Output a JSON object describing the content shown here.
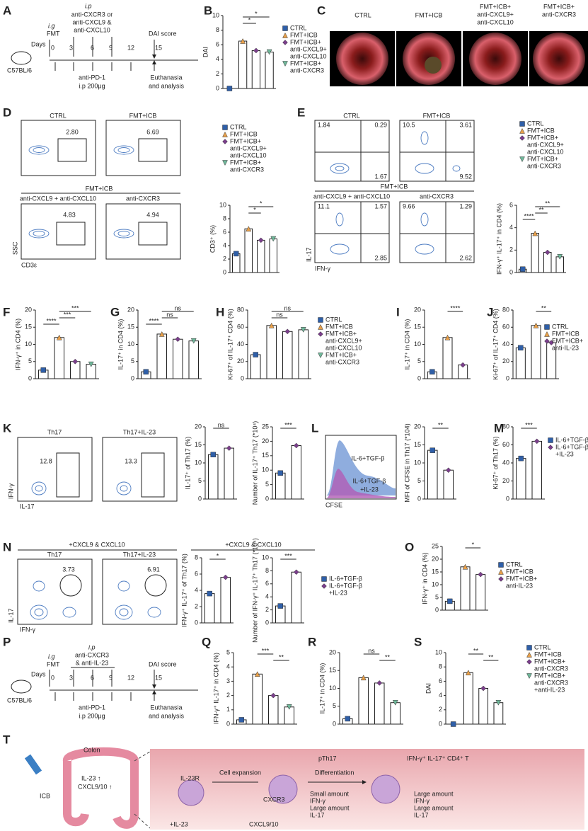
{
  "letters": [
    "A",
    "B",
    "C",
    "D",
    "E",
    "F",
    "G",
    "H",
    "I",
    "J",
    "K",
    "L",
    "M",
    "N",
    "O",
    "P",
    "Q",
    "R",
    "S",
    "T"
  ],
  "scheme_a": {
    "mouse": "C57BL/6",
    "days": "Days",
    "ig": "i.g",
    "fmt": "FMT",
    "ip": "i.p",
    "drug": [
      "anti-CXCR3 or",
      "anti-CXCL9 &",
      "anti-CXCL10"
    ],
    "score": "DAI score",
    "day_ticks": [
      0,
      3,
      6,
      9,
      12,
      15
    ],
    "pd1": "anti-PD-1",
    "dose": "i.p  200μg",
    "end": [
      "Euthanasia",
      "and analysis"
    ]
  },
  "scheme_p": {
    "mouse": "C57BL/6",
    "days": "Days",
    "ig": "i.g",
    "fmt": "FMT",
    "ip": "i.p",
    "drug": [
      "anti-CXCR3",
      "& anti-IL-23"
    ],
    "score": "DAI score",
    "day_ticks": [
      0,
      3,
      6,
      9,
      12,
      15
    ],
    "pd1": "anti-PD-1",
    "dose": "i.p  200μg",
    "end": [
      "Euthanasia",
      "and analysis"
    ]
  },
  "colonoscopy": {
    "labels": [
      [
        "CTRL"
      ],
      [
        "FMT+ICB"
      ],
      [
        "FMT+ICB+",
        "anti-CXCL9+",
        "anti-CXCL10"
      ],
      [
        "FMT+ICB+",
        "anti-CXCR3"
      ]
    ]
  },
  "flow_d": {
    "titles": [
      "CTRL",
      "FMT+ICB",
      "anti-CXCL9 + anti-CXCL10",
      "anti-CXCR3"
    ],
    "group": "FMT+ICB",
    "gates": [
      "2.80",
      "6.69",
      "4.83",
      "4.94"
    ],
    "ylabel": "SSC",
    "xlabel": "CD3ε"
  },
  "flow_e": {
    "titles": [
      "CTRL",
      "FMT+ICB",
      "anti-CXCL9 + anti-CXCL10",
      "anti-CXCR3"
    ],
    "group": "FMT+ICB",
    "quadrants": [
      [
        "1.84",
        "0.29",
        "1.67"
      ],
      [
        "10.5",
        "3.61",
        "9.52"
      ],
      [
        "11.1",
        "1.57",
        "2.85"
      ],
      [
        "9.66",
        "1.29",
        "2.62"
      ]
    ],
    "ylabel": "IL-17",
    "xlabel": "IFN-γ"
  },
  "flow_k": {
    "titles": [
      "Th17",
      "Th17+IL-23"
    ],
    "gates": [
      12.8,
      13.3
    ],
    "ylabel": "IFN-γ",
    "xlabel": "IL-17"
  },
  "histogram_l": {
    "labels": [
      "IL-6+TGF-β",
      "IL-6+TGF-β",
      "+IL-23"
    ],
    "xlabel": "CFSE"
  },
  "flow_n": {
    "header": "+CXCL9 & CXCL10",
    "titles": [
      "Th17",
      "Th17+IL-23"
    ],
    "gates": [
      3.73,
      6.91
    ],
    "ylabel": "IL-17",
    "xlabel": "IFN-γ"
  },
  "bar_header_n": "+CXCL9 & CXCL10",
  "legends": [
    {
      "items": [
        {
          "name": [
            "CTRL"
          ],
          "color": "#2f5fa8"
        },
        {
          "name": [
            "FMT+ICB"
          ],
          "color": "#e8a04a"
        },
        {
          "name": [
            "FMT+ICB+",
            "anti-CXCL9+",
            "anti-CXCL10"
          ],
          "color": "#7b3f8c"
        },
        {
          "name": [
            "FMT+ICB+",
            "anti-CXCR3"
          ],
          "color": "#6fb89a"
        }
      ]
    },
    {
      "items": [
        {
          "name": [
            "CTRL"
          ],
          "color": "#2f5fa8"
        },
        {
          "name": [
            "FMT+ICB"
          ],
          "color": "#e8a04a"
        },
        {
          "name": [
            "FMT+ICB+",
            "anti-CXCL9+",
            "anti-CXCL10"
          ],
          "color": "#7b3f8c"
        },
        {
          "name": [
            "FMT+ICB+",
            "anti-CXCR3"
          ],
          "color": "#6fb89a"
        }
      ]
    },
    {
      "items": [
        {
          "name": [
            "CTRL"
          ],
          "color": "#2f5fa8"
        },
        {
          "name": [
            "FMT+ICB"
          ],
          "color": "#e8a04a"
        },
        {
          "name": [
            "FMT+ICB+",
            "anti-CXCL9+",
            "anti-CXCL10"
          ],
          "color": "#7b3f8c"
        },
        {
          "name": [
            "FMT+ICB+",
            "anti-CXCR3"
          ],
          "color": "#6fb89a"
        }
      ]
    },
    {
      "items": [
        {
          "name": [
            "CTRL"
          ],
          "color": "#2f5fa8"
        },
        {
          "name": [
            "FMT+ICB"
          ],
          "color": "#e8a04a"
        },
        {
          "name": [
            "FMT+ICB+",
            "anti-CXCL9+",
            "anti-CXCL10"
          ],
          "color": "#7b3f8c"
        },
        {
          "name": [
            "FMT+ICB+",
            "anti-CXCR3"
          ],
          "color": "#6fb89a"
        }
      ]
    },
    {
      "items": [
        {
          "name": [
            "CTRL"
          ],
          "color": "#2f5fa8"
        },
        {
          "name": [
            "FMT+ICB"
          ],
          "color": "#e8a04a"
        },
        {
          "name": [
            "FMT+ICB+",
            "anti-IL-23"
          ],
          "color": "#7b3f8c"
        }
      ]
    },
    {
      "items": [
        {
          "name": [
            "IL-6+TGF-β"
          ],
          "color": "#2f5fa8"
        },
        {
          "name": [
            "IL-6+TGF-β",
            "+IL-23"
          ],
          "color": "#7b3f8c"
        }
      ]
    },
    {
      "items": [
        {
          "name": [
            "IL-6+TGF-β"
          ],
          "color": "#2f5fa8"
        },
        {
          "name": [
            "IL-6+TGF-β",
            "+IL-23"
          ],
          "color": "#7b3f8c"
        }
      ]
    },
    {
      "items": [
        {
          "name": [
            "CTRL"
          ],
          "color": "#2f5fa8"
        },
        {
          "name": [
            "FMT+ICB"
          ],
          "color": "#e8a04a"
        },
        {
          "name": [
            "FMT+ICB+",
            "anti-IL-23"
          ],
          "color": "#7b3f8c"
        }
      ]
    },
    {
      "items": [
        {
          "name": [
            "CTRL"
          ],
          "color": "#2f5fa8"
        },
        {
          "name": [
            "FMT+ICB"
          ],
          "color": "#e8a04a"
        },
        {
          "name": [
            "FMT+ICB+",
            "anti-CXCR3"
          ],
          "color": "#7b3f8c"
        },
        {
          "name": [
            "FMT+ICB+",
            "anti-CXCR3",
            "+anti-IL-23"
          ],
          "color": "#6fb89a"
        }
      ]
    }
  ],
  "chart_data": [
    {
      "type": "bar",
      "ylabel": "DAI",
      "values": [
        0,
        6.5,
        5.2,
        5.0
      ],
      "colors": [
        "#2f5fa8",
        "#e8a04a",
        "#7b3f8c",
        "#6fb89a"
      ],
      "ylim": [
        0,
        10
      ],
      "yticks": [
        0,
        2,
        4,
        6,
        8,
        10
      ],
      "sig": [
        "*",
        "*"
      ]
    },
    {
      "type": "bar",
      "ylabel": "CD3⁺ (%)",
      "values": [
        2.8,
        6.5,
        4.8,
        5.0
      ],
      "colors": [
        "#2f5fa8",
        "#e8a04a",
        "#7b3f8c",
        "#6fb89a"
      ],
      "ylim": [
        0,
        10
      ],
      "yticks": [
        0,
        2,
        4,
        6,
        8,
        10
      ],
      "sig": [
        "*",
        "*"
      ]
    },
    {
      "type": "bar",
      "ylabel": "IFN-γ⁺ IL-17⁺ in CD4 (%)",
      "values": [
        0.3,
        3.5,
        1.8,
        1.4
      ],
      "colors": [
        "#2f5fa8",
        "#e8a04a",
        "#7b3f8c",
        "#6fb89a"
      ],
      "ylim": [
        0,
        6
      ],
      "yticks": [
        0,
        2,
        4,
        6
      ],
      "sig": [
        "**",
        "**",
        "****"
      ]
    },
    {
      "type": "bar",
      "ylabel": "IFN-γ⁺ in CD4 (%)",
      "values": [
        2.5,
        12,
        5,
        4.2
      ],
      "colors": [
        "#2f5fa8",
        "#e8a04a",
        "#7b3f8c",
        "#6fb89a"
      ],
      "ylim": [
        0,
        20
      ],
      "yticks": [
        0,
        5,
        10,
        15,
        20
      ],
      "sig": [
        "***",
        "***",
        "****"
      ]
    },
    {
      "type": "bar",
      "ylabel": "IL-17⁺ in CD4 (%)",
      "values": [
        2,
        13,
        11.5,
        11
      ],
      "colors": [
        "#2f5fa8",
        "#e8a04a",
        "#7b3f8c",
        "#6fb89a"
      ],
      "ylim": [
        0,
        20
      ],
      "yticks": [
        0,
        5,
        10,
        15,
        20
      ],
      "sig": [
        "ns",
        "ns",
        "****"
      ]
    },
    {
      "type": "bar",
      "ylabel": "Ki-67⁺ of IL-17⁺ CD4 (%)",
      "values": [
        28,
        62,
        55,
        57
      ],
      "colors": [
        "#2f5fa8",
        "#e8a04a",
        "#7b3f8c",
        "#6fb89a"
      ],
      "ylim": [
        0,
        80
      ],
      "yticks": [
        0,
        20,
        40,
        60,
        80
      ],
      "sig": [
        "ns",
        "ns"
      ]
    },
    {
      "type": "bar",
      "ylabel": "IL-17⁺ in CD4 (%)",
      "values": [
        2,
        12,
        4
      ],
      "colors": [
        "#2f5fa8",
        "#e8a04a",
        "#7b3f8c"
      ],
      "ylim": [
        0,
        20
      ],
      "yticks": [
        0,
        5,
        10,
        15,
        20
      ],
      "sig": [
        "****"
      ]
    },
    {
      "type": "bar",
      "ylabel": "Ki-67⁺ of IL-17⁺ CD4 (%)",
      "values": [
        36,
        62,
        42
      ],
      "colors": [
        "#2f5fa8",
        "#e8a04a",
        "#7b3f8c"
      ],
      "ylim": [
        0,
        80
      ],
      "yticks": [
        0,
        20,
        40,
        60,
        80
      ],
      "sig": [
        "**"
      ]
    },
    {
      "type": "bar",
      "ylabel": "IL-17⁺ of Th17 (%)",
      "values": [
        12.3,
        14.1
      ],
      "colors": [
        "#2f5fa8",
        "#7b3f8c"
      ],
      "ylim": [
        0,
        20
      ],
      "yticks": [
        0,
        5,
        10,
        15,
        20
      ],
      "sig": [
        "ns"
      ]
    },
    {
      "type": "bar",
      "ylabel": "Number of IL-17⁺ Th17 (*10⁴)",
      "values": [
        9,
        18.5
      ],
      "colors": [
        "#2f5fa8",
        "#7b3f8c"
      ],
      "ylim": [
        0,
        25
      ],
      "yticks": [
        0,
        5,
        10,
        15,
        20,
        25
      ],
      "sig": [
        "***"
      ]
    },
    {
      "type": "bar",
      "ylabel": "MFI of CFSE in Th17 (*104)",
      "values": [
        13.5,
        8
      ],
      "colors": [
        "#2f5fa8",
        "#7b3f8c"
      ],
      "ylim": [
        0,
        20
      ],
      "yticks": [
        0,
        5,
        10,
        15,
        20
      ],
      "sig": [
        "**"
      ]
    },
    {
      "type": "bar",
      "ylabel": "Ki-67⁺ of Th17 (%)",
      "values": [
        45,
        64
      ],
      "colors": [
        "#2f5fa8",
        "#7b3f8c"
      ],
      "ylim": [
        0,
        80
      ],
      "yticks": [
        0,
        20,
        40,
        60,
        80
      ],
      "sig": [
        "***"
      ]
    },
    {
      "type": "bar",
      "ylabel": "IFN-γ⁺ IL-17⁺ of Th17 (%)",
      "values": [
        3.6,
        5.6
      ],
      "colors": [
        "#2f5fa8",
        "#7b3f8c"
      ],
      "ylim": [
        0,
        8
      ],
      "yticks": [
        0,
        2,
        4,
        6,
        8
      ],
      "sig": [
        "*"
      ]
    },
    {
      "type": "bar",
      "ylabel": "Number of IFN-γ⁺ IL-17⁺ Th17 (*10⁴)",
      "values": [
        2.6,
        7.8
      ],
      "colors": [
        "#2f5fa8",
        "#7b3f8c"
      ],
      "ylim": [
        0,
        10
      ],
      "yticks": [
        0,
        2,
        4,
        6,
        8,
        10
      ],
      "sig": [
        "***"
      ]
    },
    {
      "type": "bar",
      "ylabel": "IFN-γ⁺ in CD4 (%)",
      "values": [
        3.5,
        17,
        14
      ],
      "colors": [
        "#2f5fa8",
        "#e8a04a",
        "#7b3f8c"
      ],
      "ylim": [
        0,
        25
      ],
      "yticks": [
        0,
        5,
        10,
        15,
        20,
        25
      ],
      "sig": [
        "*"
      ]
    },
    {
      "type": "bar",
      "ylabel": "IFN-γ⁺ IL-17⁺ in CD4 (%)",
      "values": [
        0.3,
        3.5,
        2,
        1.2
      ],
      "colors": [
        "#2f5fa8",
        "#e8a04a",
        "#7b3f8c",
        "#6fb89a"
      ],
      "ylim": [
        0,
        5
      ],
      "yticks": [
        0,
        1,
        2,
        3,
        4,
        5
      ],
      "sig": [
        "***",
        "**"
      ]
    },
    {
      "type": "bar",
      "ylabel": "IL-17⁺ in CD4 (%)",
      "values": [
        1.5,
        13,
        11.5,
        6
      ],
      "colors": [
        "#2f5fa8",
        "#e8a04a",
        "#7b3f8c",
        "#6fb89a"
      ],
      "ylim": [
        0,
        20
      ],
      "yticks": [
        0,
        5,
        10,
        15,
        20
      ],
      "sig": [
        "ns",
        "**"
      ]
    },
    {
      "type": "bar",
      "ylabel": "DAI",
      "values": [
        0,
        7.2,
        5,
        3
      ],
      "colors": [
        "#2f5fa8",
        "#e8a04a",
        "#7b3f8c",
        "#6fb89a"
      ],
      "ylim": [
        0,
        10
      ],
      "yticks": [
        0,
        2,
        4,
        6,
        8,
        10
      ],
      "sig": [
        "**",
        "**"
      ]
    }
  ],
  "diagram_t": {
    "colon": "Colon",
    "il23": "IL-23 ↑",
    "cxcl": "CXCL9/10 ↑",
    "icb": "ICB",
    "il23r": "IL-23R",
    "expansion": "Cell expansion",
    "pth17": "pTh17",
    "cxcr3": "CXCR3",
    "differentiation": "Differentiation",
    "effector": "IFN-γ⁺ IL-17⁺ CD4⁺ T",
    "small": [
      "Small amount",
      "IFN-γ",
      "Large amount",
      "IL-17"
    ],
    "large": [
      "Large amount",
      "IFN-γ",
      "Large amount",
      "IL-17"
    ],
    "plus_il23": "+IL-23",
    "cxcl910": "CXCL9/10"
  }
}
